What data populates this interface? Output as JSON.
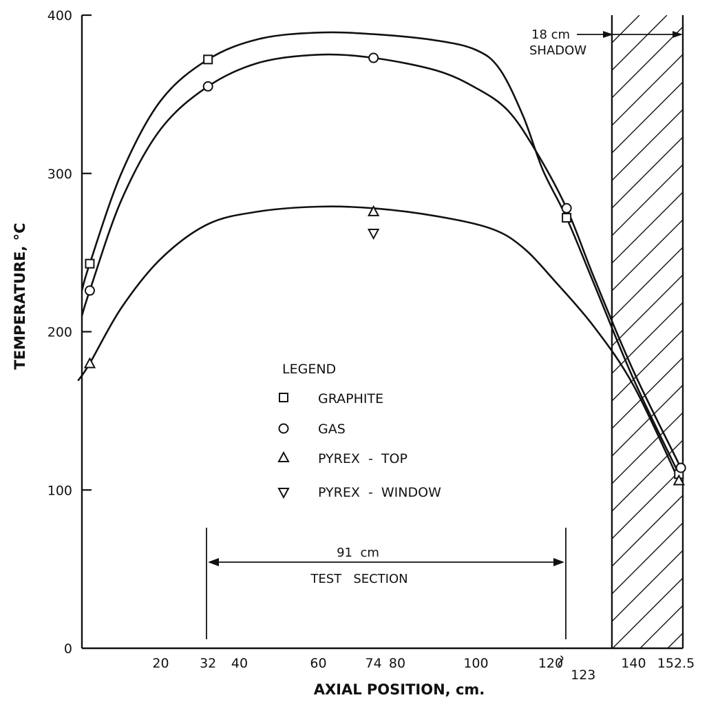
{
  "chart_data": {
    "type": "line",
    "title": "",
    "xlabel": "AXIAL POSITION, cm.",
    "ylabel": "TEMPERATURE, °C",
    "xlim": [
      0,
      152.5
    ],
    "ylim": [
      0,
      400
    ],
    "x_ticks": [
      {
        "value": 20,
        "label": "20"
      },
      {
        "value": 32,
        "label": "32"
      },
      {
        "value": 40,
        "label": "40"
      },
      {
        "value": 60,
        "label": "60"
      },
      {
        "value": 74,
        "label": "74"
      },
      {
        "value": 80,
        "label": "80"
      },
      {
        "value": 100,
        "label": "100"
      },
      {
        "value": 120,
        "label": "120"
      },
      {
        "value": 123,
        "label": "123"
      },
      {
        "value": 140,
        "label": "140"
      },
      {
        "value": 152.5,
        "label": "152.5"
      }
    ],
    "y_ticks": [
      {
        "value": 0,
        "label": "0"
      },
      {
        "value": 100,
        "label": "100"
      },
      {
        "value": 200,
        "label": "200"
      },
      {
        "value": 300,
        "label": "300"
      },
      {
        "value": 400,
        "label": "400"
      }
    ],
    "grid": false,
    "legend": {
      "title": "LEGEND",
      "placement": "center",
      "items": [
        {
          "marker": "square",
          "label": "GRAPHITE"
        },
        {
          "marker": "circle",
          "label": "GAS"
        },
        {
          "marker": "triangle-up",
          "label": "PYREX  -  TOP"
        },
        {
          "marker": "triangle-down",
          "label": "PYREX  -  WINDOW"
        }
      ]
    },
    "series": [
      {
        "name": "GRAPHITE",
        "marker": "square",
        "points": [
          [
            2,
            243
          ],
          [
            32,
            372
          ],
          [
            123,
            272
          ],
          [
            151.5,
            110
          ]
        ],
        "curve": [
          [
            0,
            226
          ],
          [
            2,
            243
          ],
          [
            10,
            300
          ],
          [
            20,
            346
          ],
          [
            32,
            372
          ],
          [
            45,
            385
          ],
          [
            60,
            389
          ],
          [
            74,
            388
          ],
          [
            90,
            384
          ],
          [
            100,
            378
          ],
          [
            106,
            366
          ],
          [
            112,
            336
          ],
          [
            117,
            302
          ],
          [
            123,
            272
          ],
          [
            130,
            230
          ],
          [
            140,
            170
          ],
          [
            151.5,
            110
          ]
        ]
      },
      {
        "name": "GAS",
        "marker": "circle",
        "points": [
          [
            2,
            226
          ],
          [
            32,
            355
          ],
          [
            74,
            373
          ],
          [
            123,
            278
          ],
          [
            152,
            114
          ]
        ],
        "curve": [
          [
            0,
            210
          ],
          [
            2,
            226
          ],
          [
            10,
            283
          ],
          [
            20,
            328
          ],
          [
            32,
            355
          ],
          [
            45,
            370
          ],
          [
            60,
            375
          ],
          [
            74,
            373
          ],
          [
            90,
            365
          ],
          [
            100,
            354
          ],
          [
            108,
            340
          ],
          [
            115,
            315
          ],
          [
            123,
            278
          ],
          [
            130,
            234
          ],
          [
            140,
            175
          ],
          [
            152,
            114
          ]
        ]
      },
      {
        "name": "PYREX  -  TOP",
        "marker": "triangle-up",
        "points": [
          [
            2,
            180
          ],
          [
            74,
            276
          ],
          [
            151.5,
            106
          ]
        ],
        "curve": [
          [
            -1,
            169
          ],
          [
            2,
            180
          ],
          [
            10,
            215
          ],
          [
            20,
            246
          ],
          [
            32,
            268
          ],
          [
            45,
            276
          ],
          [
            60,
            279
          ],
          [
            74,
            278
          ],
          [
            90,
            273
          ],
          [
            104,
            265
          ],
          [
            112,
            253
          ],
          [
            120,
            232
          ],
          [
            130,
            203
          ],
          [
            140,
            166
          ],
          [
            151.5,
            106
          ]
        ]
      },
      {
        "name": "PYREX  -  WINDOW",
        "marker": "triangle-down",
        "points": [
          [
            74,
            262
          ]
        ]
      }
    ],
    "annotations": {
      "test_section": {
        "length_label": "91  cm",
        "name": "TEST   SECTION",
        "x_range": [
          32,
          123
        ],
        "y": 53
      },
      "shadow": {
        "length_label": "18 cm",
        "name": "SHADOW",
        "x_range": [
          134.5,
          152.5
        ]
      }
    }
  }
}
